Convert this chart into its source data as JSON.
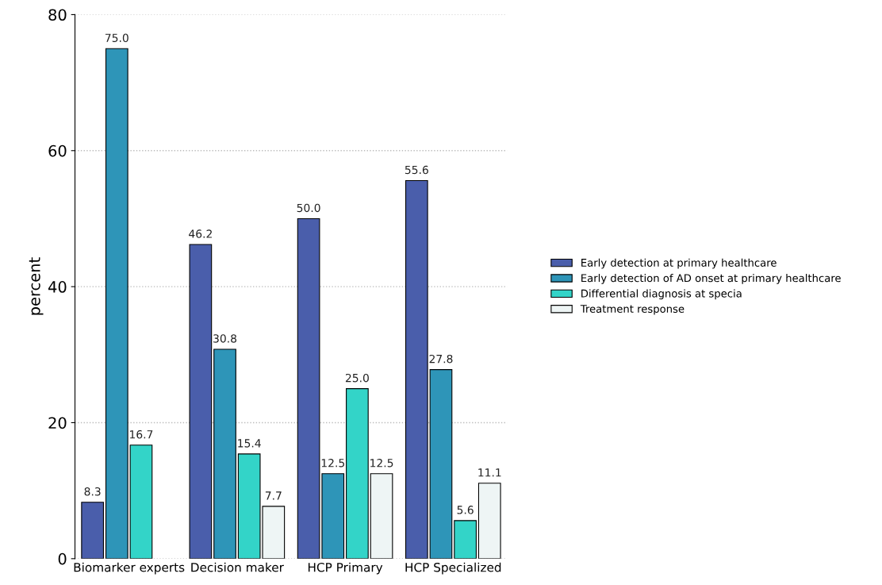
{
  "chart_data": {
    "type": "bar",
    "ylabel": "percent",
    "categories": [
      "Biomarker experts",
      "Decision maker",
      "HCP Primary",
      "HCP Specialized"
    ],
    "series": [
      {
        "name": "Early detection at primary healthcare",
        "color": "#4a5eab",
        "values": [
          8.3,
          46.2,
          50.0,
          55.6
        ],
        "value_labels": [
          "8.3",
          "46.2",
          "50.0",
          "55.6"
        ]
      },
      {
        "name": "Early detection of AD onset at primary healthcare",
        "color": "#2e95b8",
        "values": [
          75.0,
          30.8,
          12.5,
          27.8
        ],
        "value_labels": [
          "75.0",
          "30.8",
          "12.5",
          "27.8"
        ]
      },
      {
        "name": "Differential diagnosis at specia",
        "color": "#33d4c8",
        "values": [
          16.7,
          15.4,
          25.0,
          5.6
        ],
        "value_labels": [
          "16.7",
          "15.4",
          "25.0",
          "5.6"
        ]
      },
      {
        "name": "Treatment response",
        "color": "#eef5f5",
        "values": [
          null,
          7.7,
          12.5,
          11.1
        ],
        "value_labels": [
          null,
          "7.7",
          "12.5",
          "11.1"
        ]
      }
    ],
    "ylim": [
      0,
      80
    ],
    "yticks": [
      0,
      20,
      40,
      60,
      80
    ],
    "grid": "y",
    "legend": "right"
  }
}
